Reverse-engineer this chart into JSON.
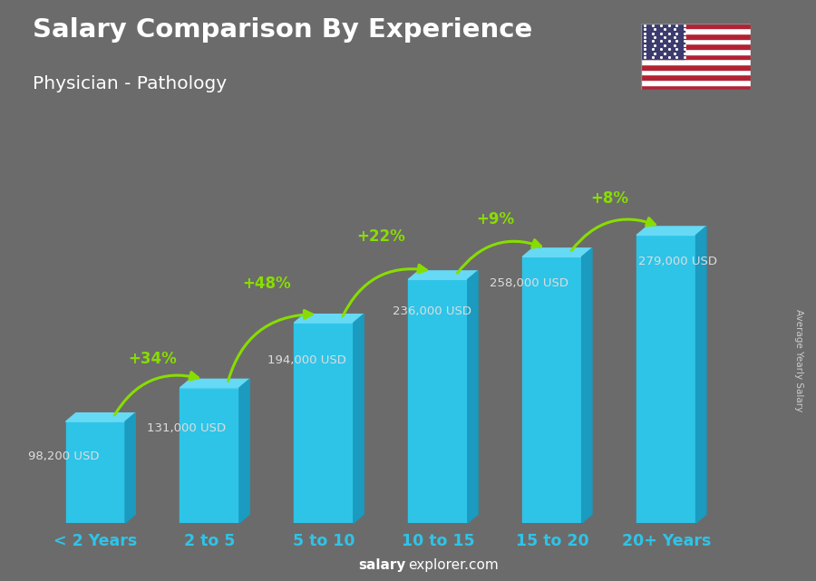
{
  "title": "Salary Comparison By Experience",
  "subtitle": "Physician - Pathology",
  "categories": [
    "< 2 Years",
    "2 to 5",
    "5 to 10",
    "10 to 15",
    "15 to 20",
    "20+ Years"
  ],
  "values": [
    98200,
    131000,
    194000,
    236000,
    258000,
    279000
  ],
  "labels": [
    "98,200 USD",
    "131,000 USD",
    "194,000 USD",
    "236,000 USD",
    "258,000 USD",
    "279,000 USD"
  ],
  "pct_changes": [
    "+34%",
    "+48%",
    "+22%",
    "+9%",
    "+8%"
  ],
  "bar_color_face": "#2EC4E8",
  "bar_color_top": "#66D9F5",
  "bar_color_side": "#1A9BBF",
  "background_color": "#6b6b6b",
  "title_color": "#ffffff",
  "subtitle_color": "#ffffff",
  "pct_color": "#88DD00",
  "xlabel_color": "#2EC4E8",
  "label_color": "#dddddd",
  "ylabel_text": "Average Yearly Salary",
  "source_bold": "salary",
  "source_normal": "explorer.com"
}
